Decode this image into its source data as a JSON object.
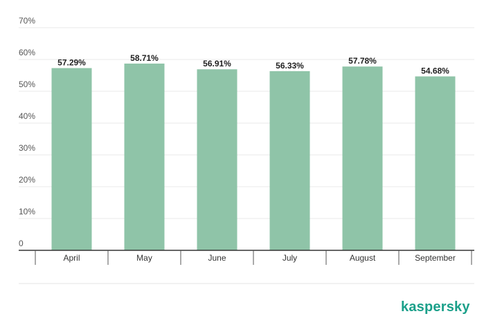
{
  "brand": {
    "logo_text": "kaspersky",
    "logo_color": "#1ba08a"
  },
  "chart_data": {
    "type": "bar",
    "categories": [
      "April",
      "May",
      "June",
      "July",
      "August",
      "September"
    ],
    "values": [
      57.29,
      58.71,
      56.91,
      56.33,
      57.78,
      54.68
    ],
    "value_labels": [
      "57.29%",
      "58.71%",
      "56.91%",
      "56.33%",
      "57.78%",
      "54.68%"
    ],
    "ylim": [
      0,
      70
    ],
    "yticks": [
      0,
      10,
      20,
      30,
      40,
      50,
      60,
      70
    ],
    "ytick_labels": [
      "0",
      "10%",
      "20%",
      "30%",
      "40%",
      "50%",
      "60%",
      "70%"
    ],
    "grid": true,
    "bar_color": "#8fc4a8",
    "legend": "none"
  }
}
